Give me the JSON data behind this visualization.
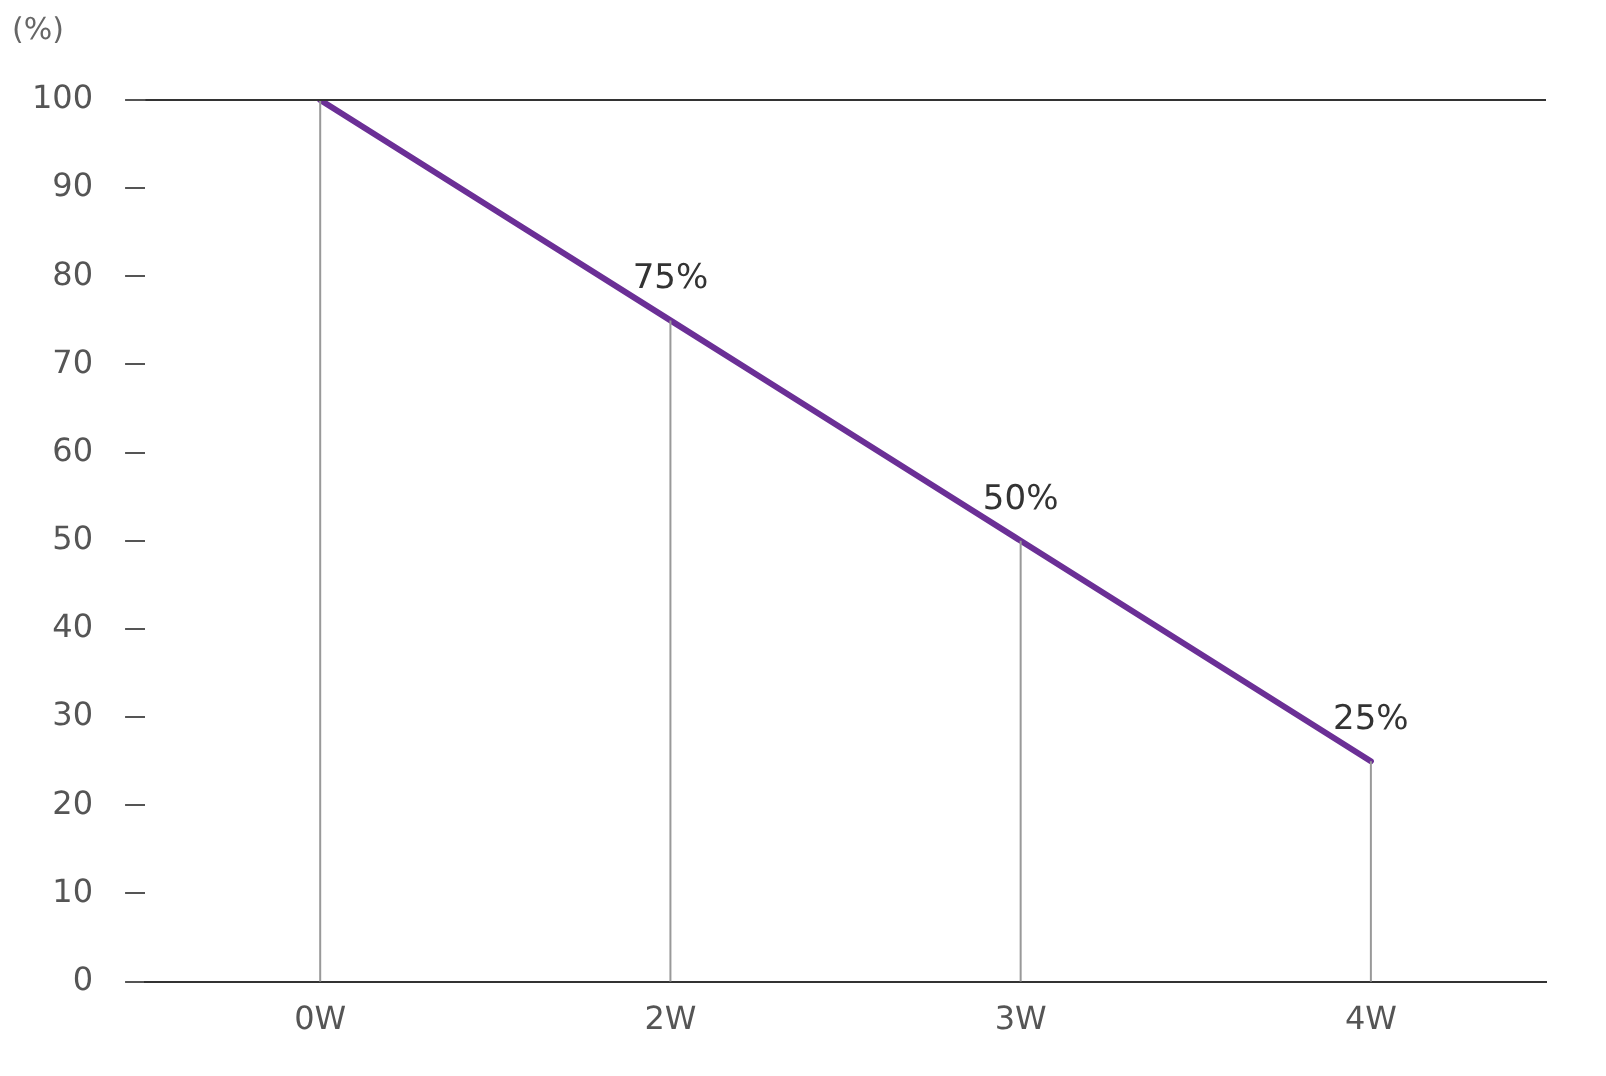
{
  "chart_data": {
    "type": "line",
    "ylabel": "(%)",
    "categories": [
      "0W",
      "2W",
      "3W",
      "4W"
    ],
    "series": [
      {
        "color": "#6b2f96",
        "values": [
          100,
          75,
          50,
          25
        ],
        "value_labels": [
          null,
          "75%",
          "50%",
          "25%"
        ]
      }
    ],
    "ylim": [
      0,
      100
    ],
    "yticks": [
      0,
      10,
      20,
      30,
      40,
      50,
      60,
      70,
      80,
      90,
      100
    ],
    "grid": "x",
    "legend": false,
    "marker": "none",
    "line_style": "solid",
    "ref_lines": [
      {
        "axis": "y",
        "value": 100,
        "color": "#333333"
      }
    ]
  }
}
